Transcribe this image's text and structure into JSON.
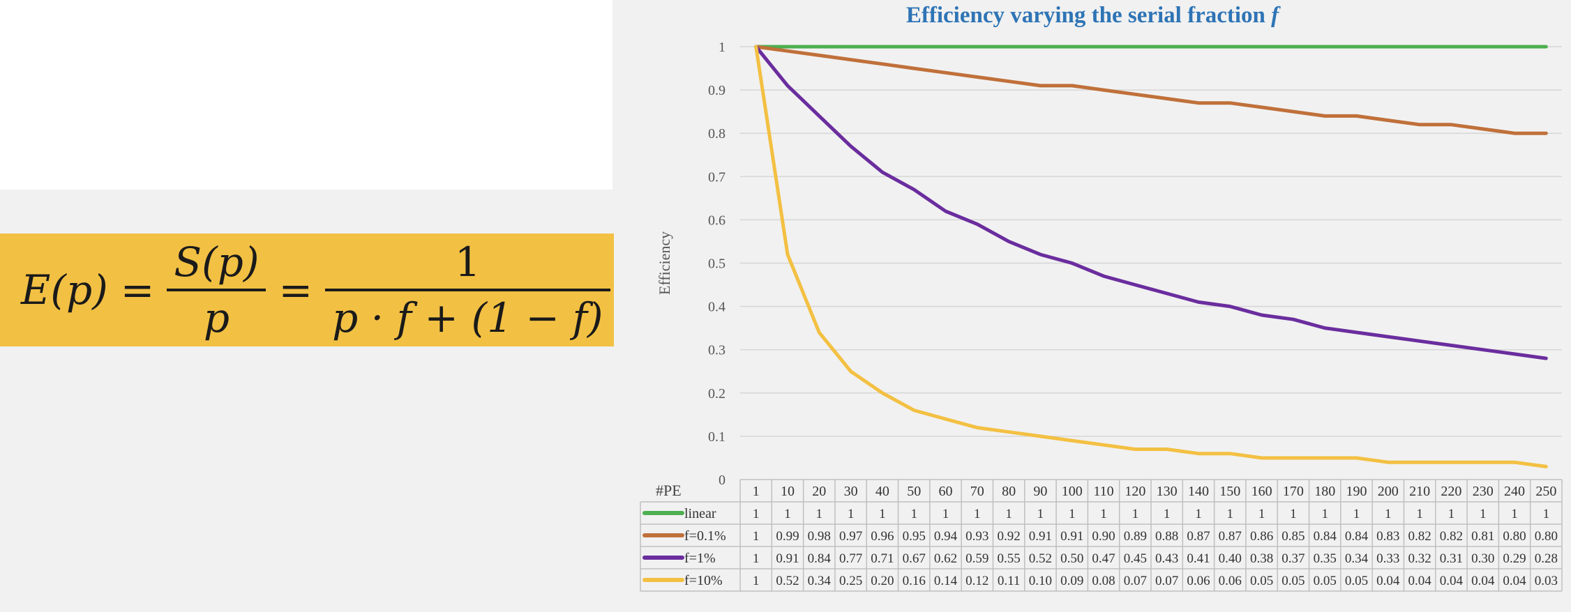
{
  "formula": {
    "lhs": "E(p)",
    "eq": "=",
    "frac1_num": "S(p)",
    "frac1_den": "p",
    "frac2_num": "1",
    "frac2_den": "p · f + (1 − f)"
  },
  "chart_data": {
    "type": "line",
    "title": "Efficiency varying the serial fraction ",
    "title_var": "f",
    "ylabel": "Efficiency",
    "ylim": [
      0,
      1
    ],
    "yticks": [
      "0",
      "0.1",
      "0.2",
      "0.3",
      "0.4",
      "0.5",
      "0.6",
      "0.7",
      "0.8",
      "0.9",
      "1"
    ],
    "grid": true,
    "legend": "data-table",
    "table_header": "#PE",
    "categories": [
      "1",
      "10",
      "20",
      "30",
      "40",
      "50",
      "60",
      "70",
      "80",
      "90",
      "100",
      "110",
      "120",
      "130",
      "140",
      "150",
      "160",
      "170",
      "180",
      "190",
      "200",
      "210",
      "220",
      "230",
      "240",
      "250"
    ],
    "series": [
      {
        "name": "linear",
        "color": "#4caf50",
        "values": [
          1,
          1,
          1,
          1,
          1,
          1,
          1,
          1,
          1,
          1,
          1,
          1,
          1,
          1,
          1,
          1,
          1,
          1,
          1,
          1,
          1,
          1,
          1,
          1,
          1,
          1
        ],
        "labels": [
          "1",
          "1",
          "1",
          "1",
          "1",
          "1",
          "1",
          "1",
          "1",
          "1",
          "1",
          "1",
          "1",
          "1",
          "1",
          "1",
          "1",
          "1",
          "1",
          "1",
          "1",
          "1",
          "1",
          "1",
          "1",
          "1"
        ]
      },
      {
        "name": "f=0.1%",
        "color": "#c0703a",
        "values": [
          1,
          0.99,
          0.98,
          0.97,
          0.96,
          0.95,
          0.94,
          0.93,
          0.92,
          0.91,
          0.91,
          0.9,
          0.89,
          0.88,
          0.87,
          0.87,
          0.86,
          0.85,
          0.84,
          0.84,
          0.83,
          0.82,
          0.82,
          0.81,
          0.8,
          0.8
        ],
        "labels": [
          "1",
          "0.99",
          "0.98",
          "0.97",
          "0.96",
          "0.95",
          "0.94",
          "0.93",
          "0.92",
          "0.91",
          "0.91",
          "0.90",
          "0.89",
          "0.88",
          "0.87",
          "0.87",
          "0.86",
          "0.85",
          "0.84",
          "0.84",
          "0.83",
          "0.82",
          "0.82",
          "0.81",
          "0.80",
          "0.80"
        ]
      },
      {
        "name": "f=1%",
        "color": "#6a2d9e",
        "values": [
          1,
          0.91,
          0.84,
          0.77,
          0.71,
          0.67,
          0.62,
          0.59,
          0.55,
          0.52,
          0.5,
          0.47,
          0.45,
          0.43,
          0.41,
          0.4,
          0.38,
          0.37,
          0.35,
          0.34,
          0.33,
          0.32,
          0.31,
          0.3,
          0.29,
          0.28
        ],
        "labels": [
          "1",
          "0.91",
          "0.84",
          "0.77",
          "0.71",
          "0.67",
          "0.62",
          "0.59",
          "0.55",
          "0.52",
          "0.50",
          "0.47",
          "0.45",
          "0.43",
          "0.41",
          "0.40",
          "0.38",
          "0.37",
          "0.35",
          "0.34",
          "0.33",
          "0.32",
          "0.31",
          "0.30",
          "0.29",
          "0.28"
        ]
      },
      {
        "name": "f=10%",
        "color": "#f3c042",
        "values": [
          1,
          0.52,
          0.34,
          0.25,
          0.2,
          0.16,
          0.14,
          0.12,
          0.11,
          0.1,
          0.09,
          0.08,
          0.07,
          0.07,
          0.06,
          0.06,
          0.05,
          0.05,
          0.05,
          0.05,
          0.04,
          0.04,
          0.04,
          0.04,
          0.04,
          0.03
        ],
        "labels": [
          "1",
          "0.52",
          "0.34",
          "0.25",
          "0.20",
          "0.16",
          "0.14",
          "0.12",
          "0.11",
          "0.10",
          "0.09",
          "0.08",
          "0.07",
          "0.07",
          "0.06",
          "0.06",
          "0.05",
          "0.05",
          "0.05",
          "0.05",
          "0.04",
          "0.04",
          "0.04",
          "0.04",
          "0.04",
          "0.03"
        ]
      }
    ]
  }
}
